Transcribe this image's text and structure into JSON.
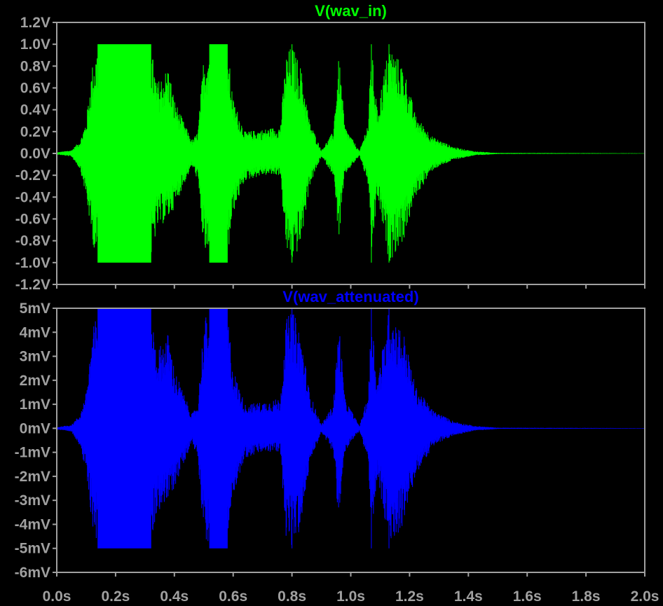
{
  "chart_data": [
    {
      "type": "line",
      "title": "V(wav_in)",
      "color": "#00ff00",
      "xlim": [
        0,
        2.0
      ],
      "ylim": [
        -1.2,
        1.2
      ],
      "x_tick_labels": [
        "0.0s",
        "0.2s",
        "0.4s",
        "0.6s",
        "0.8s",
        "1.0s",
        "1.2s",
        "1.4s",
        "1.6s",
        "1.8s",
        "2.0s"
      ],
      "y_ticks": [
        1.2,
        1.0,
        0.8,
        0.6,
        0.4,
        0.2,
        0.0,
        -0.2,
        -0.4,
        -0.6,
        -0.8,
        -1.0,
        -1.2
      ],
      "y_tick_labels": [
        "1.2V",
        "1.0V",
        "0.8V",
        "0.6V",
        "0.4V",
        "0.2V",
        "0.0V",
        "-0.2V",
        "-0.4V",
        "-0.6V",
        "-0.8V",
        "-1.0V",
        "-1.2V"
      ],
      "clip": [
        -1.0,
        1.0
      ],
      "envelope": [
        {
          "t": 0.0,
          "top": 0.01,
          "bot": -0.01
        },
        {
          "t": 0.05,
          "top": 0.03,
          "bot": -0.03
        },
        {
          "t": 0.08,
          "top": 0.12,
          "bot": -0.15
        },
        {
          "t": 0.1,
          "top": 0.3,
          "bot": -0.4
        },
        {
          "t": 0.12,
          "top": 0.8,
          "bot": -0.8
        },
        {
          "t": 0.14,
          "top": 1.0,
          "bot": -1.0
        },
        {
          "t": 0.32,
          "top": 1.0,
          "bot": -1.0
        },
        {
          "t": 0.34,
          "top": 0.65,
          "bot": -0.7
        },
        {
          "t": 0.38,
          "top": 0.8,
          "bot": -0.6
        },
        {
          "t": 0.4,
          "top": 0.5,
          "bot": -0.5
        },
        {
          "t": 0.43,
          "top": 0.3,
          "bot": -0.3
        },
        {
          "t": 0.46,
          "top": 0.12,
          "bot": -0.12
        },
        {
          "t": 0.48,
          "top": 0.2,
          "bot": -0.25
        },
        {
          "t": 0.5,
          "top": 0.9,
          "bot": -0.9
        },
        {
          "t": 0.52,
          "top": 1.0,
          "bot": -1.0
        },
        {
          "t": 0.58,
          "top": 1.0,
          "bot": -1.0
        },
        {
          "t": 0.6,
          "top": 0.5,
          "bot": -0.55
        },
        {
          "t": 0.64,
          "top": 0.2,
          "bot": -0.25
        },
        {
          "t": 0.7,
          "top": 0.22,
          "bot": -0.2
        },
        {
          "t": 0.76,
          "top": 0.25,
          "bot": -0.2
        },
        {
          "t": 0.78,
          "top": 0.9,
          "bot": -0.9
        },
        {
          "t": 0.8,
          "top": 1.0,
          "bot": -1.0
        },
        {
          "t": 0.83,
          "top": 0.8,
          "bot": -0.85
        },
        {
          "t": 0.86,
          "top": 0.3,
          "bot": -0.3
        },
        {
          "t": 0.9,
          "top": 0.03,
          "bot": -0.03
        },
        {
          "t": 0.94,
          "top": 0.2,
          "bot": -0.2
        },
        {
          "t": 0.96,
          "top": 0.9,
          "bot": -0.8
        },
        {
          "t": 0.98,
          "top": 0.25,
          "bot": -0.2
        },
        {
          "t": 1.03,
          "top": 0.02,
          "bot": -0.02
        },
        {
          "t": 1.06,
          "top": 0.3,
          "bot": -0.3
        },
        {
          "t": 1.07,
          "top": 1.0,
          "bot": -1.0
        },
        {
          "t": 1.09,
          "top": 0.4,
          "bot": -0.4
        },
        {
          "t": 1.13,
          "top": 1.0,
          "bot": -1.0
        },
        {
          "t": 1.18,
          "top": 0.8,
          "bot": -0.8
        },
        {
          "t": 1.22,
          "top": 0.35,
          "bot": -0.4
        },
        {
          "t": 1.28,
          "top": 0.15,
          "bot": -0.15
        },
        {
          "t": 1.35,
          "top": 0.06,
          "bot": -0.06
        },
        {
          "t": 1.42,
          "top": 0.02,
          "bot": -0.02
        },
        {
          "t": 1.5,
          "top": 0.005,
          "bot": -0.005
        },
        {
          "t": 2.0,
          "top": 0.002,
          "bot": -0.002
        }
      ]
    },
    {
      "type": "line",
      "title": "V(wav_attenuated)",
      "color": "#0000ff",
      "xlim": [
        0,
        2.0
      ],
      "ylim": [
        -6,
        5
      ],
      "x_tick_labels": [
        "0.0s",
        "0.2s",
        "0.4s",
        "0.6s",
        "0.8s",
        "1.0s",
        "1.2s",
        "1.4s",
        "1.6s",
        "1.8s",
        "2.0s"
      ],
      "y_ticks": [
        5,
        4,
        3,
        2,
        1,
        0,
        -1,
        -2,
        -3,
        -4,
        -5,
        -6
      ],
      "y_tick_labels": [
        "5mV",
        "4mV",
        "3mV",
        "2mV",
        "1mV",
        "0mV",
        "-1mV",
        "-2mV",
        "-3mV",
        "-4mV",
        "-5mV",
        "-6mV"
      ],
      "clip": [
        -5,
        5
      ],
      "envelope": [
        {
          "t": 0.0,
          "top": 0.05,
          "bot": -0.05
        },
        {
          "t": 0.05,
          "top": 0.15,
          "bot": -0.15
        },
        {
          "t": 0.08,
          "top": 0.6,
          "bot": -0.75
        },
        {
          "t": 0.1,
          "top": 1.5,
          "bot": -2.0
        },
        {
          "t": 0.12,
          "top": 4.0,
          "bot": -4.0
        },
        {
          "t": 0.14,
          "top": 5.0,
          "bot": -5.0
        },
        {
          "t": 0.32,
          "top": 5.0,
          "bot": -5.0
        },
        {
          "t": 0.34,
          "top": 3.25,
          "bot": -3.5
        },
        {
          "t": 0.38,
          "top": 4.0,
          "bot": -3.0
        },
        {
          "t": 0.4,
          "top": 2.5,
          "bot": -2.5
        },
        {
          "t": 0.43,
          "top": 1.5,
          "bot": -1.5
        },
        {
          "t": 0.46,
          "top": 0.6,
          "bot": -0.6
        },
        {
          "t": 0.48,
          "top": 1.0,
          "bot": -1.25
        },
        {
          "t": 0.5,
          "top": 4.5,
          "bot": -4.5
        },
        {
          "t": 0.52,
          "top": 5.0,
          "bot": -5.0
        },
        {
          "t": 0.58,
          "top": 5.0,
          "bot": -5.0
        },
        {
          "t": 0.6,
          "top": 2.5,
          "bot": -2.75
        },
        {
          "t": 0.64,
          "top": 1.0,
          "bot": -1.25
        },
        {
          "t": 0.7,
          "top": 1.1,
          "bot": -1.0
        },
        {
          "t": 0.76,
          "top": 1.25,
          "bot": -1.0
        },
        {
          "t": 0.78,
          "top": 4.5,
          "bot": -4.5
        },
        {
          "t": 0.8,
          "top": 5.0,
          "bot": -5.0
        },
        {
          "t": 0.83,
          "top": 4.0,
          "bot": -4.25
        },
        {
          "t": 0.86,
          "top": 1.5,
          "bot": -1.5
        },
        {
          "t": 0.9,
          "top": 0.15,
          "bot": -0.15
        },
        {
          "t": 0.94,
          "top": 1.0,
          "bot": -1.0
        },
        {
          "t": 0.96,
          "top": 4.5,
          "bot": -4.0
        },
        {
          "t": 0.98,
          "top": 1.25,
          "bot": -1.0
        },
        {
          "t": 1.03,
          "top": 0.1,
          "bot": -0.1
        },
        {
          "t": 1.06,
          "top": 1.5,
          "bot": -1.5
        },
        {
          "t": 1.07,
          "top": 5.0,
          "bot": -5.0
        },
        {
          "t": 1.09,
          "top": 2.0,
          "bot": -2.0
        },
        {
          "t": 1.13,
          "top": 5.0,
          "bot": -5.0
        },
        {
          "t": 1.18,
          "top": 4.0,
          "bot": -4.0
        },
        {
          "t": 1.22,
          "top": 1.75,
          "bot": -2.0
        },
        {
          "t": 1.28,
          "top": 0.75,
          "bot": -0.75
        },
        {
          "t": 1.35,
          "top": 0.3,
          "bot": -0.3
        },
        {
          "t": 1.42,
          "top": 0.1,
          "bot": -0.1
        },
        {
          "t": 1.5,
          "top": 0.025,
          "bot": -0.025
        },
        {
          "t": 2.0,
          "top": 0.01,
          "bot": -0.01
        }
      ]
    }
  ]
}
